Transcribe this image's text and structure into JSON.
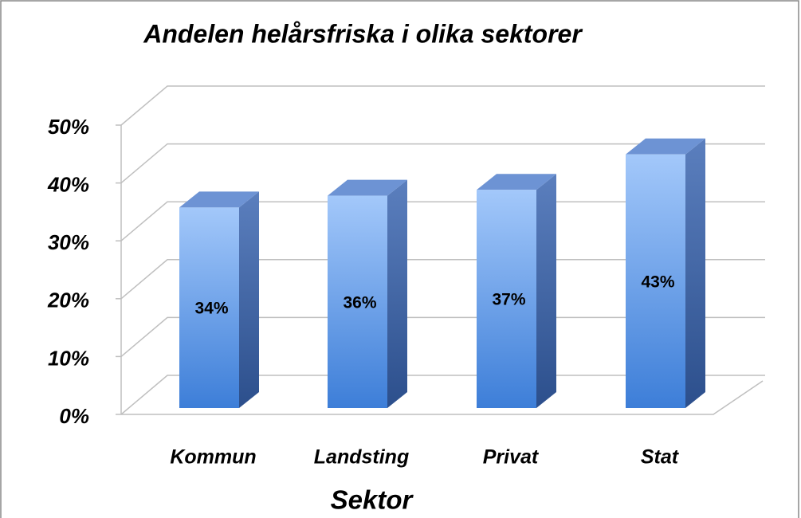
{
  "chart_data": {
    "type": "bar",
    "title": "Andelen helårsfriska i olika sektorer",
    "x_label": "Sektor",
    "categories": [
      "Kommun",
      "Landsting",
      "Privat",
      "Stat"
    ],
    "values": [
      34,
      36,
      37,
      43
    ],
    "value_labels": [
      "34%",
      "36%",
      "37%",
      "43%"
    ],
    "color": "#5b95e6",
    "ylim": [
      0,
      50
    ],
    "yticks": [
      {
        "value": 0,
        "label": "0%"
      },
      {
        "value": 10,
        "label": "10%"
      },
      {
        "value": 20,
        "label": "20%"
      },
      {
        "value": 30,
        "label": "30%"
      },
      {
        "value": 40,
        "label": "40%"
      },
      {
        "value": 50,
        "label": "50%"
      }
    ],
    "grid": true
  }
}
